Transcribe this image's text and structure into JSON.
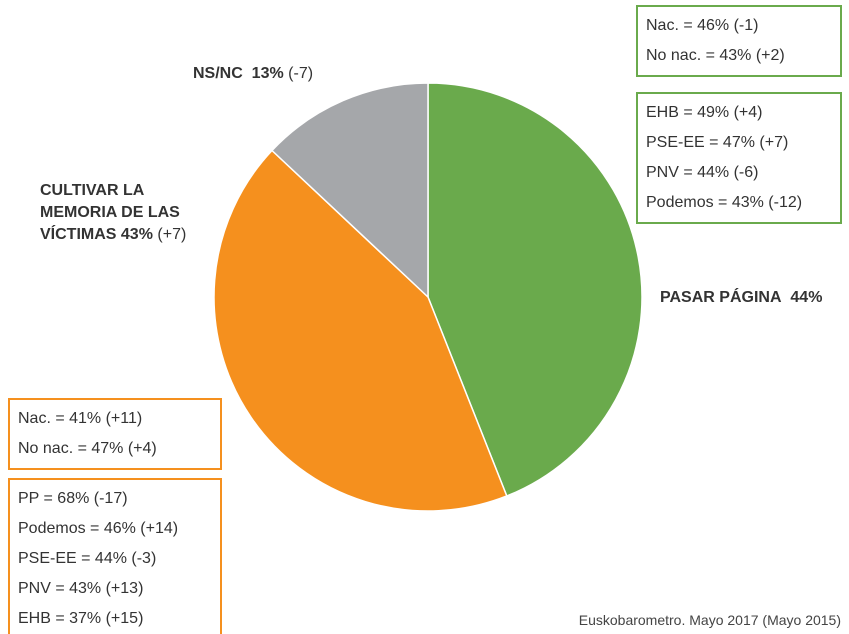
{
  "chart_data": {
    "type": "pie",
    "categories": [
      "PASAR PÁGINA",
      "CULTIVAR LA MEMORIA DE LAS VÍCTIMAS",
      "NS/NC"
    ],
    "values": [
      44,
      43,
      13
    ],
    "value_labels": [
      "44%",
      "43%",
      "13%"
    ],
    "value_changes": [
      null,
      "(+7)",
      "(-7)"
    ],
    "colors": [
      "#6aaa4c",
      "#f5901e",
      "#a5a7aa"
    ],
    "annotations": [
      {
        "color": "#6aaa4c",
        "lines": [
          "Nac. = 46% (-1)",
          "No nac. = 43% (+2)"
        ]
      },
      {
        "color": "#6aaa4c",
        "lines": [
          "EHB = 49% (+4)",
          "PSE-EE = 47% (+7)",
          "PNV = 44% (-6)",
          "Podemos = 43% (-12)"
        ]
      },
      {
        "color": "#f5901e",
        "lines": [
          "Nac. = 41% (+11)",
          "No nac. = 47% (+4)"
        ]
      },
      {
        "color": "#f5901e",
        "lines": [
          "PP = 68% (-17)",
          "Podemos = 46% (+14)",
          "PSE-EE = 44% (-3)",
          "PNV = 43% (+13)",
          "EHB = 37% (+15)"
        ]
      }
    ],
    "source": "Euskobarometro. Mayo 2017 (Mayo 2015)"
  }
}
